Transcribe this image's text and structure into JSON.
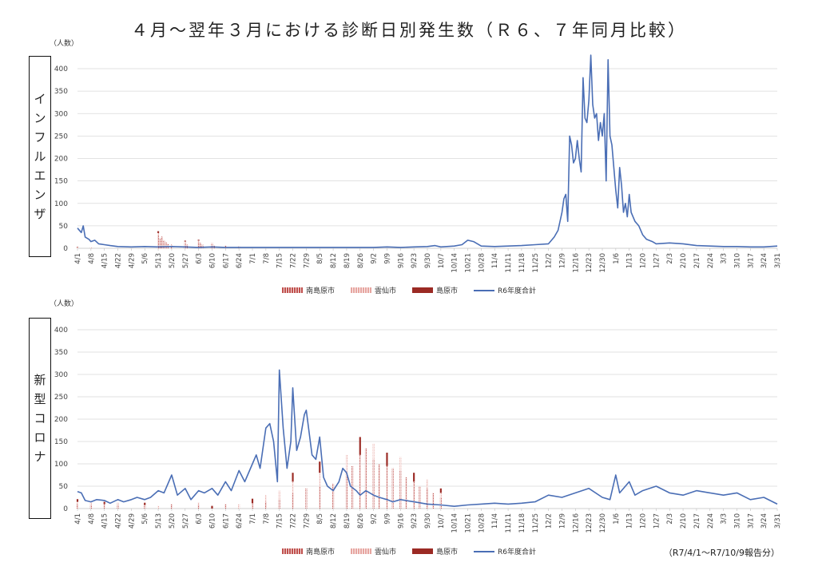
{
  "title": "４月～翌年３月における診断日別発生数（Ｒ６、７年同月比較）",
  "unit": "（人数）",
  "note": "（R7/4/1～R7/10/9報告分）",
  "colors": {
    "line": "#4a6eb5",
    "minamishimabara": "#c0504d",
    "unzen": "#e6a5a0",
    "shimabara": "#9b2a24",
    "grid": "#d9d9d9"
  },
  "legend": [
    "南島原市",
    "雲仙市",
    "島原市",
    "R6年度合計"
  ],
  "x_tick_labels": [
    "4/1",
    "4/8",
    "4/15",
    "4/22",
    "4/29",
    "5/6",
    "5/13",
    "5/20",
    "5/27",
    "6/3",
    "6/10",
    "6/17",
    "6/24",
    "7/1",
    "7/8",
    "7/15",
    "7/22",
    "7/29",
    "8/5",
    "8/12",
    "8/19",
    "8/26",
    "9/2",
    "9/9",
    "9/16",
    "9/23",
    "9/30",
    "10/7",
    "10/14",
    "10/21",
    "10/28",
    "11/4",
    "11/11",
    "11/18",
    "11/25",
    "12/2",
    "12/9",
    "12/16",
    "12/23",
    "12/30",
    "1/6",
    "1/13",
    "1/20",
    "1/27",
    "2/3",
    "2/10",
    "2/17",
    "2/24",
    "3/3",
    "3/10",
    "3/17",
    "3/24",
    "3/31"
  ],
  "chart_data": [
    {
      "type": "bar+line",
      "category_label": "インフルエンザ",
      "ylabel": "（人数）",
      "ylim": [
        0,
        400
      ],
      "yticks": [
        0,
        50,
        100,
        150,
        200,
        250,
        300,
        350,
        400
      ],
      "x_range": [
        "4/1",
        "3/31"
      ],
      "grid": true,
      "legend_position": "bottom",
      "line_series": {
        "name": "R6年度合計",
        "points": [
          [
            "4/1",
            45
          ],
          [
            "4/3",
            35
          ],
          [
            "4/4",
            50
          ],
          [
            "4/5",
            25
          ],
          [
            "4/7",
            20
          ],
          [
            "4/8",
            15
          ],
          [
            "4/10",
            18
          ],
          [
            "4/12",
            10
          ],
          [
            "4/15",
            8
          ],
          [
            "4/18",
            6
          ],
          [
            "4/22",
            4
          ],
          [
            "4/29",
            3
          ],
          [
            "5/6",
            4
          ],
          [
            "5/13",
            3
          ],
          [
            "5/20",
            4
          ],
          [
            "5/27",
            3
          ],
          [
            "6/3",
            2
          ],
          [
            "6/10",
            3
          ],
          [
            "6/17",
            2
          ],
          [
            "6/24",
            2
          ],
          [
            "7/1",
            2
          ],
          [
            "7/8",
            2
          ],
          [
            "7/15",
            2
          ],
          [
            "7/22",
            2
          ],
          [
            "7/29",
            2
          ],
          [
            "8/5",
            2
          ],
          [
            "8/12",
            2
          ],
          [
            "8/19",
            2
          ],
          [
            "8/26",
            2
          ],
          [
            "9/2",
            2
          ],
          [
            "9/9",
            3
          ],
          [
            "9/16",
            2
          ],
          [
            "9/23",
            3
          ],
          [
            "9/30",
            4
          ],
          [
            "10/4",
            6
          ],
          [
            "10/7",
            3
          ],
          [
            "10/14",
            5
          ],
          [
            "10/18",
            8
          ],
          [
            "10/21",
            18
          ],
          [
            "10/24",
            15
          ],
          [
            "10/28",
            5
          ],
          [
            "11/4",
            4
          ],
          [
            "11/11",
            5
          ],
          [
            "11/18",
            6
          ],
          [
            "11/25",
            8
          ],
          [
            "12/2",
            10
          ],
          [
            "12/5",
            25
          ],
          [
            "12/7",
            40
          ],
          [
            "12/9",
            80
          ],
          [
            "12/10",
            110
          ],
          [
            "12/11",
            120
          ],
          [
            "12/12",
            60
          ],
          [
            "12/13",
            250
          ],
          [
            "12/14",
            230
          ],
          [
            "12/15",
            190
          ],
          [
            "12/16",
            200
          ],
          [
            "12/17",
            240
          ],
          [
            "12/18",
            200
          ],
          [
            "12/19",
            170
          ],
          [
            "12/20",
            380
          ],
          [
            "12/21",
            290
          ],
          [
            "12/22",
            280
          ],
          [
            "12/23",
            330
          ],
          [
            "12/24",
            430
          ],
          [
            "12/25",
            320
          ],
          [
            "12/26",
            290
          ],
          [
            "12/27",
            300
          ],
          [
            "12/28",
            240
          ],
          [
            "12/29",
            280
          ],
          [
            "12/30",
            250
          ],
          [
            "12/31",
            300
          ],
          [
            "1/1",
            150
          ],
          [
            "1/2",
            420
          ],
          [
            "1/3",
            250
          ],
          [
            "1/4",
            230
          ],
          [
            "1/5",
            180
          ],
          [
            "1/6",
            130
          ],
          [
            "1/7",
            90
          ],
          [
            "1/8",
            180
          ],
          [
            "1/9",
            140
          ],
          [
            "1/10",
            80
          ],
          [
            "1/11",
            100
          ],
          [
            "1/12",
            70
          ],
          [
            "1/13",
            120
          ],
          [
            "1/14",
            80
          ],
          [
            "1/16",
            60
          ],
          [
            "1/18",
            50
          ],
          [
            "1/20",
            30
          ],
          [
            "1/22",
            20
          ],
          [
            "1/25",
            15
          ],
          [
            "1/27",
            10
          ],
          [
            "2/3",
            12
          ],
          [
            "2/10",
            10
          ],
          [
            "2/17",
            6
          ],
          [
            "2/24",
            5
          ],
          [
            "3/3",
            4
          ],
          [
            "3/10",
            4
          ],
          [
            "3/17",
            3
          ],
          [
            "3/24",
            3
          ],
          [
            "3/31",
            5
          ]
        ]
      },
      "bar_series": [
        {
          "name": "南島原市",
          "points": [
            [
              "5/13",
              30
            ],
            [
              "5/14",
              22
            ],
            [
              "5/15",
              26
            ],
            [
              "5/16",
              18
            ],
            [
              "5/17",
              14
            ],
            [
              "5/18",
              10
            ],
            [
              "5/20",
              8
            ],
            [
              "5/27",
              12
            ],
            [
              "5/28",
              8
            ],
            [
              "6/3",
              14
            ],
            [
              "6/4",
              12
            ],
            [
              "6/5",
              8
            ],
            [
              "6/10",
              10
            ],
            [
              "6/11",
              6
            ],
            [
              "6/17",
              6
            ],
            [
              "6/24",
              4
            ]
          ]
        },
        {
          "name": "雲仙市",
          "points": [
            [
              "4/1",
              2
            ],
            [
              "4/8",
              2
            ],
            [
              "5/13",
              4
            ],
            [
              "5/27",
              3
            ],
            [
              "6/3",
              3
            ],
            [
              "6/10",
              2
            ]
          ]
        },
        {
          "name": "島原市",
          "points": [
            [
              "4/1",
              1
            ],
            [
              "5/13",
              4
            ],
            [
              "5/27",
              2
            ],
            [
              "6/3",
              2
            ]
          ]
        }
      ]
    },
    {
      "type": "bar+line",
      "category_label": "新型コロナ",
      "ylabel": "（人数）",
      "ylim": [
        0,
        400
      ],
      "yticks": [
        0,
        50,
        100,
        150,
        200,
        250,
        300,
        350,
        400
      ],
      "x_range": [
        "4/1",
        "3/31"
      ],
      "grid": true,
      "legend_position": "bottom",
      "line_series": {
        "name": "R6年度合計",
        "points": [
          [
            "4/1",
            38
          ],
          [
            "4/3",
            35
          ],
          [
            "4/5",
            18
          ],
          [
            "4/8",
            15
          ],
          [
            "4/11",
            20
          ],
          [
            "4/15",
            18
          ],
          [
            "4/18",
            12
          ],
          [
            "4/22",
            20
          ],
          [
            "4/25",
            15
          ],
          [
            "4/29",
            20
          ],
          [
            "5/2",
            25
          ],
          [
            "5/6",
            20
          ],
          [
            "5/9",
            25
          ],
          [
            "5/13",
            40
          ],
          [
            "5/16",
            35
          ],
          [
            "5/20",
            75
          ],
          [
            "5/23",
            30
          ],
          [
            "5/27",
            45
          ],
          [
            "5/30",
            20
          ],
          [
            "6/3",
            40
          ],
          [
            "6/6",
            35
          ],
          [
            "6/10",
            45
          ],
          [
            "6/13",
            30
          ],
          [
            "6/17",
            60
          ],
          [
            "6/20",
            40
          ],
          [
            "6/24",
            85
          ],
          [
            "6/27",
            60
          ],
          [
            "7/1",
            100
          ],
          [
            "7/3",
            120
          ],
          [
            "7/5",
            90
          ],
          [
            "7/8",
            180
          ],
          [
            "7/10",
            190
          ],
          [
            "7/12",
            150
          ],
          [
            "7/14",
            60
          ],
          [
            "7/15",
            310
          ],
          [
            "7/17",
            180
          ],
          [
            "7/19",
            90
          ],
          [
            "7/21",
            150
          ],
          [
            "7/22",
            270
          ],
          [
            "7/24",
            130
          ],
          [
            "7/26",
            160
          ],
          [
            "7/28",
            210
          ],
          [
            "7/29",
            220
          ],
          [
            "8/1",
            120
          ],
          [
            "8/3",
            110
          ],
          [
            "8/5",
            160
          ],
          [
            "8/7",
            70
          ],
          [
            "8/9",
            50
          ],
          [
            "8/12",
            40
          ],
          [
            "8/15",
            60
          ],
          [
            "8/17",
            90
          ],
          [
            "8/19",
            80
          ],
          [
            "8/21",
            50
          ],
          [
            "8/24",
            40
          ],
          [
            "8/26",
            30
          ],
          [
            "8/29",
            40
          ],
          [
            "9/2",
            30
          ],
          [
            "9/5",
            25
          ],
          [
            "9/9",
            20
          ],
          [
            "9/12",
            15
          ],
          [
            "9/16",
            20
          ],
          [
            "9/23",
            15
          ],
          [
            "9/30",
            10
          ],
          [
            "10/7",
            8
          ],
          [
            "10/14",
            5
          ],
          [
            "10/21",
            8
          ],
          [
            "10/28",
            10
          ],
          [
            "11/4",
            12
          ],
          [
            "11/11",
            10
          ],
          [
            "11/18",
            12
          ],
          [
            "11/25",
            15
          ],
          [
            "12/2",
            30
          ],
          [
            "12/9",
            25
          ],
          [
            "12/16",
            35
          ],
          [
            "12/23",
            45
          ],
          [
            "12/30",
            25
          ],
          [
            "1/3",
            20
          ],
          [
            "1/6",
            75
          ],
          [
            "1/8",
            35
          ],
          [
            "1/13",
            60
          ],
          [
            "1/16",
            30
          ],
          [
            "1/20",
            40
          ],
          [
            "1/27",
            50
          ],
          [
            "2/3",
            35
          ],
          [
            "2/10",
            30
          ],
          [
            "2/17",
            40
          ],
          [
            "2/24",
            35
          ],
          [
            "3/3",
            30
          ],
          [
            "3/10",
            35
          ],
          [
            "3/17",
            20
          ],
          [
            "3/24",
            25
          ],
          [
            "3/31",
            10
          ]
        ]
      },
      "bar_series": [
        {
          "name": "南島原市",
          "points": [
            [
              "4/1",
              10
            ],
            [
              "4/8",
              8
            ],
            [
              "4/15",
              10
            ],
            [
              "4/22",
              8
            ],
            [
              "5/6",
              8
            ],
            [
              "5/20",
              10
            ],
            [
              "6/3",
              8
            ],
            [
              "6/17",
              10
            ],
            [
              "7/1",
              12
            ],
            [
              "7/8",
              15
            ],
            [
              "7/15",
              20
            ],
            [
              "7/22",
              35
            ],
            [
              "7/29",
              45
            ],
            [
              "8/5",
              50
            ],
            [
              "8/12",
              55
            ],
            [
              "8/19",
              80
            ],
            [
              "8/22",
              95
            ],
            [
              "8/26",
              120
            ],
            [
              "8/29",
              135
            ],
            [
              "9/2",
              110
            ],
            [
              "9/5",
              100
            ],
            [
              "9/9",
              95
            ],
            [
              "9/12",
              90
            ],
            [
              "9/16",
              85
            ],
            [
              "9/19",
              70
            ],
            [
              "9/23",
              60
            ],
            [
              "9/26",
              50
            ],
            [
              "9/30",
              45
            ],
            [
              "10/3",
              35
            ],
            [
              "10/7",
              25
            ]
          ]
        },
        {
          "name": "雲仙市",
          "points": [
            [
              "4/1",
              5
            ],
            [
              "4/8",
              6
            ],
            [
              "4/22",
              6
            ],
            [
              "5/13",
              6
            ],
            [
              "6/3",
              6
            ],
            [
              "6/24",
              10
            ],
            [
              "7/8",
              15
            ],
            [
              "7/15",
              20
            ],
            [
              "7/22",
              25
            ],
            [
              "8/5",
              30
            ],
            [
              "8/19",
              40
            ],
            [
              "9/2",
              35
            ],
            [
              "9/16",
              30
            ],
            [
              "9/30",
              20
            ],
            [
              "10/7",
              10
            ]
          ]
        },
        {
          "name": "島原市",
          "points": [
            [
              "4/1",
              6
            ],
            [
              "4/15",
              5
            ],
            [
              "5/6",
              5
            ],
            [
              "6/10",
              6
            ],
            [
              "7/1",
              10
            ],
            [
              "7/22",
              20
            ],
            [
              "8/5",
              25
            ],
            [
              "8/26",
              40
            ],
            [
              "9/9",
              30
            ],
            [
              "9/23",
              20
            ],
            [
              "10/7",
              10
            ]
          ]
        }
      ]
    }
  ]
}
